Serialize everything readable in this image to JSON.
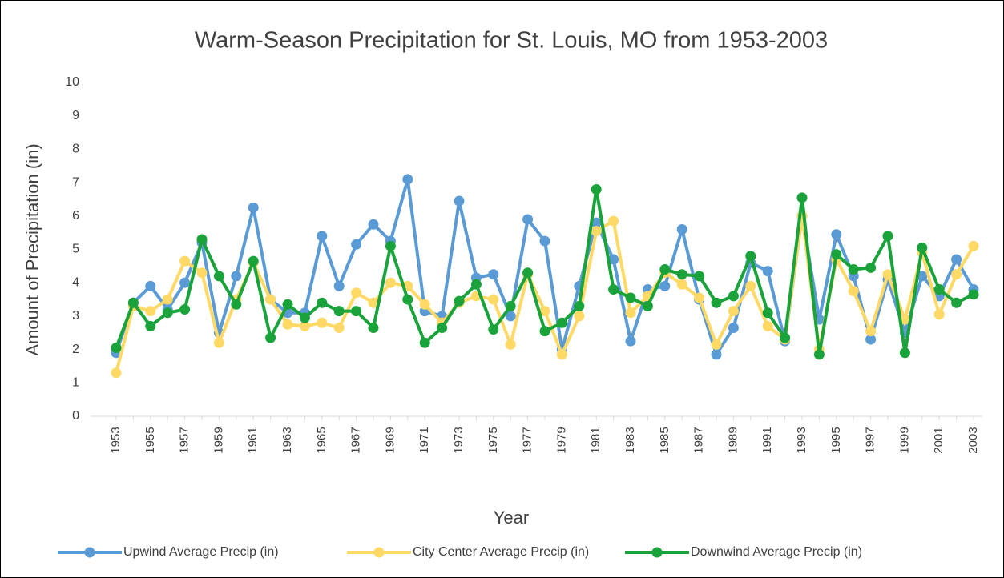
{
  "chart_data": {
    "type": "line",
    "title": "Warm-Season Precipitation for St. Louis, MO from 1953-2003",
    "x_label": "Year",
    "y_label": "Amount of Precipitation (in)",
    "categories": [
      "1953",
      null,
      "1955",
      null,
      "1957",
      null,
      "1959",
      null,
      "1961",
      null,
      "1963",
      null,
      "1965",
      null,
      "1967",
      null,
      "1969",
      null,
      "1971",
      null,
      "1973",
      null,
      "1975",
      null,
      "1977",
      null,
      "1979",
      null,
      "1981",
      null,
      "1983",
      null,
      "1985",
      null,
      "1987",
      null,
      "1989",
      null,
      "1991",
      null,
      "1993",
      null,
      "1995",
      null,
      "1997",
      null,
      "1999",
      null,
      "2001",
      null,
      "2003"
    ],
    "series": [
      {
        "name": "Upwind Average Precip (in)",
        "color": "#5b9bd5",
        "values": [
          1.9,
          3.4,
          3.9,
          3.2,
          4.0,
          5.2,
          2.5,
          4.2,
          6.25,
          3.5,
          3.1,
          3.1,
          5.4,
          3.9,
          5.15,
          5.75,
          5.25,
          7.1,
          3.15,
          3.0,
          6.45,
          4.15,
          4.25,
          3.0,
          5.9,
          5.25,
          2.0,
          3.9,
          5.8,
          4.7,
          2.25,
          3.8,
          3.9,
          5.6,
          3.5,
          1.85,
          2.65,
          4.6,
          4.35,
          2.25,
          6.0,
          2.9,
          5.45,
          4.2,
          2.3,
          4.1,
          2.5,
          4.2,
          3.6,
          4.7,
          3.8
        ]
      },
      {
        "name": "City Center Average Precip (in)",
        "color": "#ffd966",
        "values": [
          1.3,
          3.3,
          3.15,
          3.5,
          4.65,
          4.3,
          2.2,
          3.5,
          4.6,
          3.5,
          2.75,
          2.7,
          2.8,
          2.65,
          3.7,
          3.4,
          4.0,
          3.9,
          3.35,
          2.8,
          3.4,
          3.6,
          3.5,
          2.15,
          4.25,
          3.15,
          1.85,
          3.0,
          5.55,
          5.85,
          3.1,
          3.6,
          4.3,
          3.95,
          3.55,
          2.15,
          3.15,
          3.9,
          2.7,
          2.3,
          6.0,
          2.0,
          4.7,
          3.75,
          2.55,
          4.25,
          2.9,
          4.9,
          3.05,
          4.25,
          5.1
        ]
      },
      {
        "name": "Downwind Average Precip (in)",
        "color": "#1aa33a",
        "values": [
          2.05,
          3.4,
          2.7,
          3.1,
          3.2,
          5.3,
          4.2,
          3.35,
          4.65,
          2.35,
          3.35,
          2.95,
          3.4,
          3.15,
          3.15,
          2.65,
          5.1,
          3.5,
          2.2,
          2.65,
          3.45,
          3.95,
          2.6,
          3.3,
          4.3,
          2.55,
          2.8,
          3.3,
          6.8,
          3.8,
          3.55,
          3.3,
          4.4,
          4.25,
          4.2,
          3.4,
          3.6,
          4.8,
          3.1,
          2.35,
          6.55,
          1.85,
          4.85,
          4.4,
          4.45,
          5.4,
          1.9,
          5.05,
          3.8,
          3.4,
          3.65
        ]
      }
    ],
    "ylim": [
      0,
      10
    ],
    "yticks": [
      0,
      1,
      2,
      3,
      4,
      5,
      6,
      7,
      8,
      9,
      10
    ],
    "grid": false,
    "legend": "bottom"
  }
}
